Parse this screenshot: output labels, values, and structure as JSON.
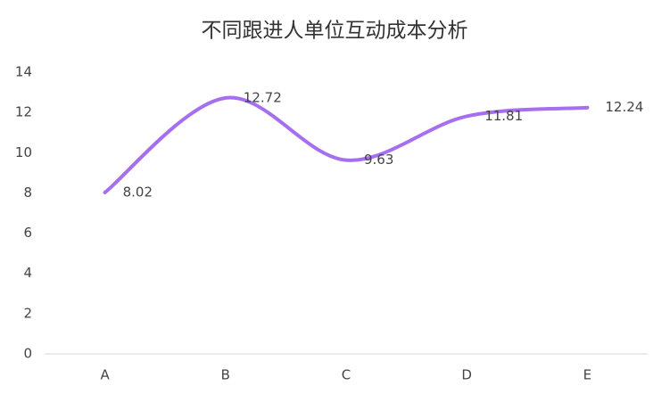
{
  "chart_data": {
    "type": "line",
    "title": "不同跟进人单位互动成本分析",
    "categories": [
      "A",
      "B",
      "C",
      "D",
      "E"
    ],
    "values": [
      8.02,
      12.72,
      9.63,
      11.81,
      12.24
    ],
    "color": "#a66ff0",
    "smooth": true,
    "ylim": [
      0,
      14
    ],
    "yticks": [
      0,
      2,
      4,
      6,
      8,
      10,
      12,
      14
    ],
    "grid": false
  }
}
